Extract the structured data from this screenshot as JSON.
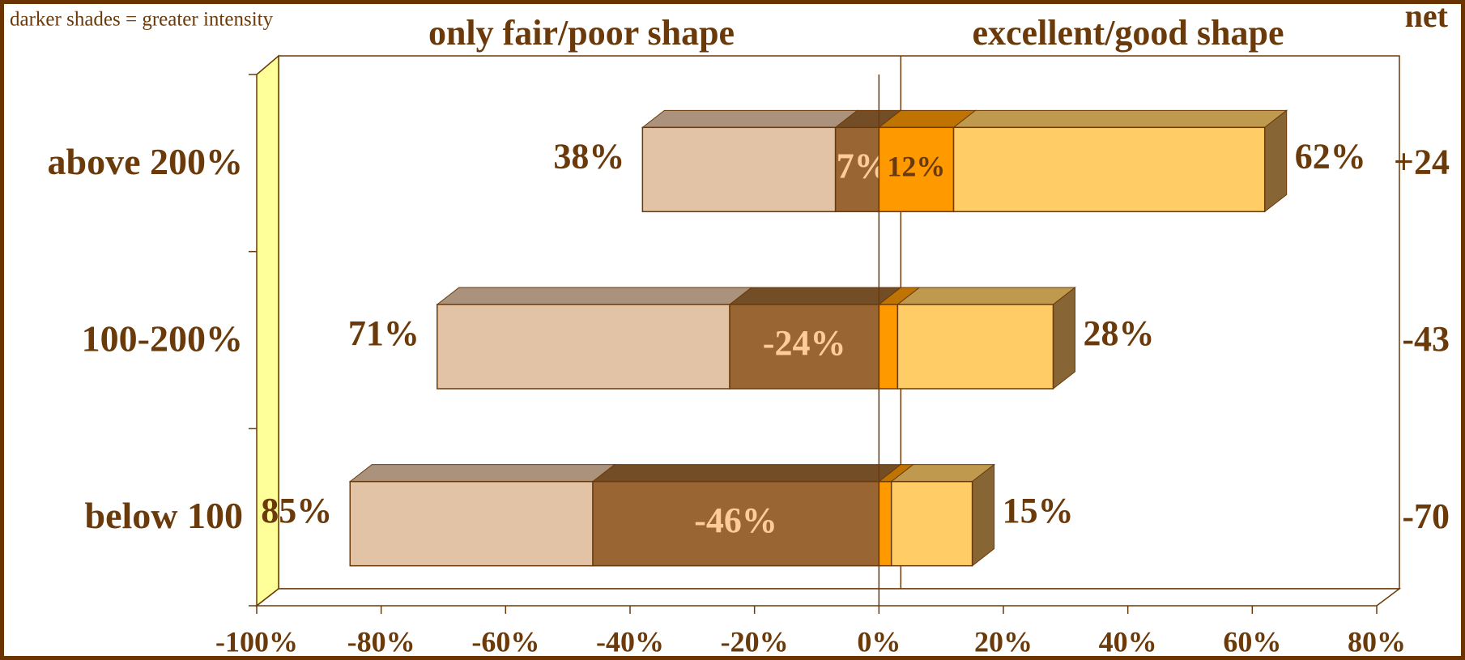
{
  "chart_data": {
    "type": "diverging-stacked-bar",
    "note": "darker shades = greater intensity",
    "left_header": "only fair/poor shape",
    "right_header": "excellent/good shape",
    "net_header": "net",
    "categories": [
      "above 200%",
      "100-200%",
      "below 100"
    ],
    "series": [
      {
        "color": "#996633",
        "values": [
          -7,
          -24,
          -46
        ],
        "value_labels": [
          "-7%",
          "-24%",
          "-46%"
        ],
        "label_color": "#ffcc99"
      },
      {
        "color": "#e2c3a5",
        "values": [
          -31,
          -47,
          -39
        ]
      },
      {
        "color": "#ff9900",
        "values": [
          12,
          3,
          2
        ],
        "value_labels": [
          "12%",
          null,
          null
        ],
        "label_color": "#6b3a0a"
      },
      {
        "color": "#ffcc66",
        "values": [
          50,
          25,
          13
        ]
      }
    ],
    "fair_poor_totals": {
      "values": [
        38,
        71,
        85
      ],
      "value_labels": [
        "38%",
        "71%",
        "85%"
      ]
    },
    "excellent_good_totals": {
      "values": [
        62,
        28,
        15
      ],
      "value_labels": [
        "62%",
        "28%",
        "15%"
      ]
    },
    "net": {
      "values": [
        24,
        -43,
        -70
      ],
      "value_labels": [
        "+24",
        "-43",
        "-70"
      ]
    },
    "xlim": [
      -100,
      80
    ],
    "xticks": [
      {
        "value": -100,
        "label": "-100%"
      },
      {
        "value": -80,
        "label": "-80%"
      },
      {
        "value": -60,
        "label": "-60%"
      },
      {
        "value": -40,
        "label": "-40%"
      },
      {
        "value": -20,
        "label": "-20%"
      },
      {
        "value": 0,
        "label": "0%"
      },
      {
        "value": 20,
        "label": "20%"
      },
      {
        "value": 40,
        "label": "40%"
      },
      {
        "value": 60,
        "label": "60%"
      },
      {
        "value": 80,
        "label": "80%"
      }
    ]
  }
}
